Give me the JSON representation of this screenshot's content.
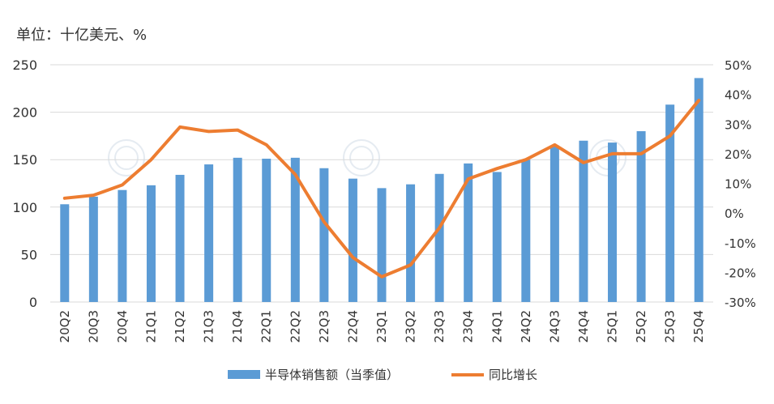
{
  "chart_data": {
    "type": "bar+line",
    "unit_label": "单位：十亿美元、%",
    "categories": [
      "20Q2",
      "20Q3",
      "20Q4",
      "21Q1",
      "21Q2",
      "21Q3",
      "21Q4",
      "22Q1",
      "22Q2",
      "22Q3",
      "22Q4",
      "23Q1",
      "23Q2",
      "23Q3",
      "23Q4",
      "24Q1",
      "24Q2",
      "24Q3",
      "24Q4",
      "25Q1",
      "25Q2",
      "25Q3",
      "25Q4"
    ],
    "series": [
      {
        "name": "半导体销售额（当季值）",
        "type": "bar",
        "axis": "left",
        "color": "#5b9bd5",
        "values": [
          103,
          111,
          118,
          123,
          134,
          145,
          152,
          151,
          152,
          141,
          130,
          120,
          124,
          135,
          146,
          137,
          150,
          165,
          170,
          168,
          180,
          208,
          236
        ]
      },
      {
        "name": "同比增长",
        "type": "line",
        "axis": "right",
        "color": "#ed7d31",
        "values": [
          5,
          6,
          9.5,
          18,
          29,
          27.5,
          28,
          23,
          13,
          -3,
          -15,
          -21.5,
          -17.5,
          -5,
          11.5,
          15,
          18,
          23,
          17,
          20,
          20,
          26,
          38
        ]
      }
    ],
    "y_left": {
      "min": 0,
      "max": 250,
      "ticks": [
        0,
        50,
        100,
        150,
        200,
        250
      ]
    },
    "y_right": {
      "min": -30,
      "max": 50,
      "ticks": [
        "-30%",
        "-20%",
        "-10%",
        "0%",
        "10%",
        "20%",
        "30%",
        "40%",
        "50%"
      ],
      "tick_values": [
        -30,
        -20,
        -10,
        0,
        10,
        20,
        30,
        40,
        50
      ]
    },
    "grid": true,
    "legend": "bottom-center"
  }
}
